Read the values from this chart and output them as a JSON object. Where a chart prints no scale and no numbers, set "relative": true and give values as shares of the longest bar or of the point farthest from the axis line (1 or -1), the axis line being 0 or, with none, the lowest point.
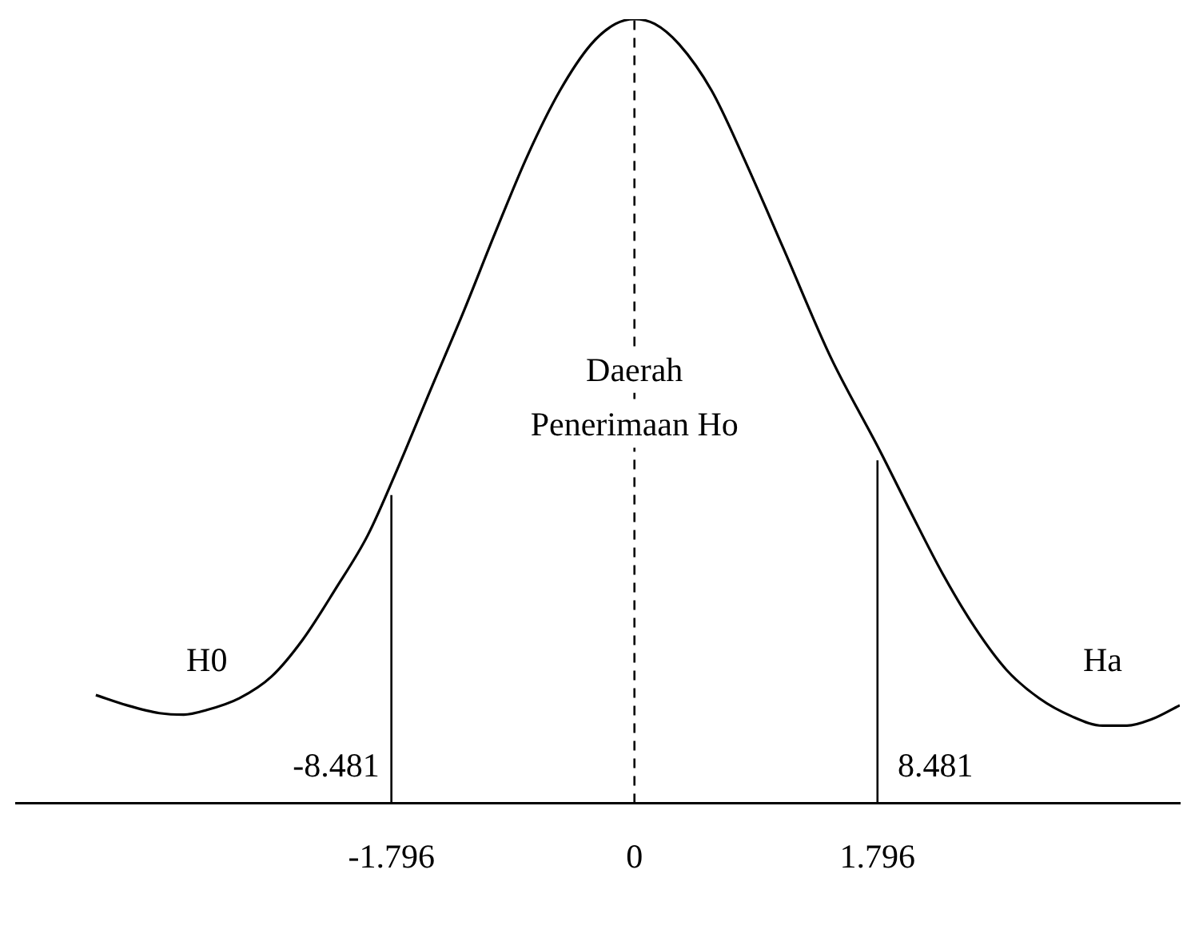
{
  "chart_data": {
    "type": "line",
    "relative": true,
    "color": "#000000",
    "marker": "none",
    "line_style": "solid",
    "grid": false,
    "legend": false,
    "x": [
      -3.98,
      -3.75,
      -3.51,
      -3.33,
      -3.16,
      -2.92,
      -2.68,
      -2.45,
      -2.21,
      -1.97,
      -1.74,
      -1.5,
      -1.26,
      -1.03,
      -0.79,
      -0.55,
      -0.32,
      -0.14,
      0,
      0.15,
      0.33,
      0.57,
      0.8,
      1.1,
      1.45,
      1.81,
      2.04,
      2.28,
      2.52,
      2.75,
      2.99,
      3.23,
      3.46,
      3.64,
      3.82,
      4.03
    ],
    "values": [
      0.138,
      0.125,
      0.115,
      0.113,
      0.119,
      0.134,
      0.162,
      0.209,
      0.273,
      0.342,
      0.431,
      0.53,
      0.628,
      0.727,
      0.826,
      0.909,
      0.968,
      0.994,
      1,
      0.994,
      0.968,
      0.909,
      0.826,
      0.708,
      0.569,
      0.451,
      0.372,
      0.292,
      0.223,
      0.17,
      0.134,
      0.111,
      0.099,
      0.099,
      0.107,
      0.125
    ],
    "xlim": [
      -4.57,
      4.03
    ],
    "xticks": [
      -1.796,
      0,
      1.796
    ],
    "tick_labels": "x",
    "ref_lines": [
      {
        "axis": "x",
        "value": -1.796,
        "color": "#000000",
        "line_style": "solid"
      },
      {
        "axis": "x",
        "value": 0,
        "color": "#000000",
        "line_style": "dashed"
      },
      {
        "axis": "x",
        "value": 1.796,
        "color": "#000000",
        "line_style": "solid"
      }
    ],
    "annotations": [
      {
        "text": "H0",
        "x": -3.16,
        "y": 0.18
      },
      {
        "text": "Ha",
        "x": 3.46,
        "y": 0.18
      },
      "-8.481",
      "8.481",
      {
        "text": "Daerah",
        "x": 0,
        "y": 0.55
      },
      {
        "text": "Penerimaan Ho",
        "x": 0,
        "y": 0.48
      }
    ]
  }
}
